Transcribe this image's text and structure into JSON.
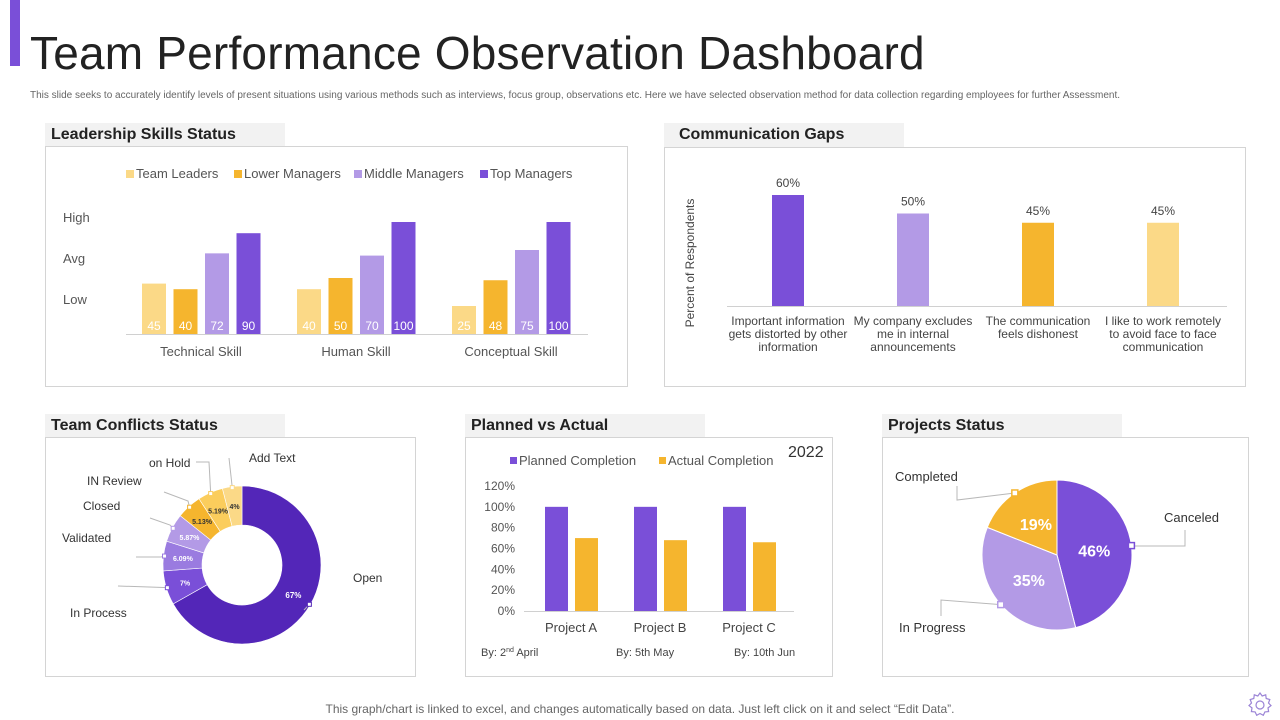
{
  "header": {
    "title": "Team Performance Observation Dashboard",
    "subtitle": "This slide seeks to accurately identify levels of present situations using various methods such as interviews, focus group, observations etc. Here we have selected observation method for data collection regarding employees for further Assessment."
  },
  "footer": {
    "note": "This graph/chart is linked to excel,  and changes automatically based on data. Just left click on it and select “Edit Data”."
  },
  "panels": {
    "leadership": "Leadership Skills Status",
    "communication": "Communication Gaps",
    "conflicts": "Team Conflicts  Status",
    "planned": "Planned vs Actual",
    "projects": "Projects  Status"
  },
  "colors": {
    "team_leaders": "#fbd987",
    "lower_managers": "#f5b52e",
    "middle_managers": "#b39ae6",
    "top_managers": "#7a4fd8",
    "open": "#5326b8",
    "accent": "#7a4fd8"
  },
  "chart_data": [
    {
      "id": "leadership",
      "type": "bar",
      "title": "Leadership Skills Status",
      "categories": [
        "Technical Skill",
        "Human Skill",
        "Conceptual Skill"
      ],
      "series": [
        {
          "name": "Team Leaders",
          "values": [
            45,
            40,
            25
          ],
          "color": "#fbd987"
        },
        {
          "name": "Lower Managers",
          "values": [
            40,
            50,
            48
          ],
          "color": "#f5b52e"
        },
        {
          "name": "Middle Managers",
          "values": [
            72,
            70,
            75
          ],
          "color": "#b39ae6"
        },
        {
          "name": "Top Managers",
          "values": [
            90,
            100,
            100
          ],
          "color": "#7a4fd8"
        }
      ],
      "y_labels": [
        "High",
        "Avg",
        "Low"
      ],
      "ylim": [
        0,
        100
      ]
    },
    {
      "id": "communication",
      "type": "bar",
      "title": "Communication Gaps",
      "ylabel": "Percent of Respondents",
      "categories": [
        [
          "Important information",
          "gets distorted by other",
          "information"
        ],
        [
          "My company excludes",
          "me in internal",
          "announcements"
        ],
        [
          "The communication",
          "feels dishonest"
        ],
        [
          "I like to work remotely",
          "to avoid face to face",
          "communication"
        ]
      ],
      "values": [
        60,
        50,
        45,
        45
      ],
      "labels": [
        "60%",
        "50%",
        "45%",
        "45%"
      ],
      "colors": [
        "#7a4fd8",
        "#b39ae6",
        "#f5b52e",
        "#fbd987"
      ],
      "ylim": [
        0,
        60
      ]
    },
    {
      "id": "conflicts",
      "type": "pie",
      "title": "Team Conflicts  Status",
      "donut": true,
      "slices": [
        {
          "name": "Open",
          "value": 67,
          "label": "67%",
          "color": "#5326b8"
        },
        {
          "name": "In Process",
          "value": 7,
          "label": "7%",
          "color": "#7a4fd8"
        },
        {
          "name": "Validated",
          "value": 6.09,
          "label": "6.09%",
          "color": "#9a7be0"
        },
        {
          "name": "Closed",
          "value": 5.87,
          "label": "5.87%",
          "color": "#b39ae6"
        },
        {
          "name": "IN Review",
          "value": 5.13,
          "label": "5.13%",
          "color": "#f5b52e"
        },
        {
          "name": "on Hold",
          "value": 5.19,
          "label": "5.19%",
          "color": "#fbcd5c"
        },
        {
          "name": "Add Text",
          "value": 4,
          "label": "4%",
          "color": "#fbd987"
        }
      ]
    },
    {
      "id": "planned",
      "type": "bar",
      "title": "Planned vs Actual",
      "year": "2022",
      "categories": [
        "Project A",
        "Project B",
        "Project C"
      ],
      "dates": [
        {
          "prefix": "By:  2",
          "sup": "nd",
          "suffix": " April"
        },
        {
          "prefix": "By:  5th May",
          "sup": "",
          "suffix": ""
        },
        {
          "prefix": "By:  10th Jun",
          "sup": "",
          "suffix": ""
        }
      ],
      "series": [
        {
          "name": "Planned Completion",
          "values": [
            100,
            100,
            100
          ],
          "color": "#7a4fd8"
        },
        {
          "name": "Actual Completion",
          "values": [
            70,
            68,
            66
          ],
          "color": "#f5b52e"
        }
      ],
      "yticks": [
        "0%",
        "20%",
        "40%",
        "60%",
        "80%",
        "100%",
        "120%"
      ],
      "ylim": [
        0,
        120
      ]
    },
    {
      "id": "projects",
      "type": "pie",
      "title": "Projects  Status",
      "slices": [
        {
          "name": "Canceled",
          "value": 46,
          "label": "46%",
          "color": "#7a4fd8"
        },
        {
          "name": "In Progress",
          "value": 35,
          "label": "35%",
          "color": "#b39ae6"
        },
        {
          "name": "Completed",
          "value": 19,
          "label": "19%",
          "color": "#f5b52e"
        }
      ]
    }
  ]
}
